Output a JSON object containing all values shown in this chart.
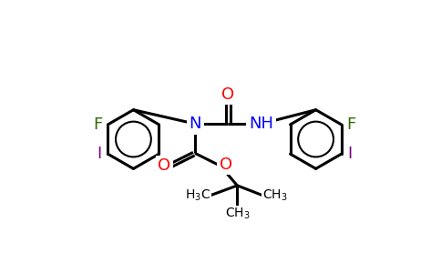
{
  "bg_color": "#ffffff",
  "bond_color": "#000000",
  "bond_width": 2.2,
  "atom_colors": {
    "O": "#ff0000",
    "N": "#0000ff",
    "F": "#336600",
    "I": "#800080",
    "C": "#000000",
    "H": "#0000ff"
  },
  "font_size_atom": 13,
  "font_size_small": 10,
  "fig_w": 4.84,
  "fig_h": 3.0,
  "dpi": 100
}
